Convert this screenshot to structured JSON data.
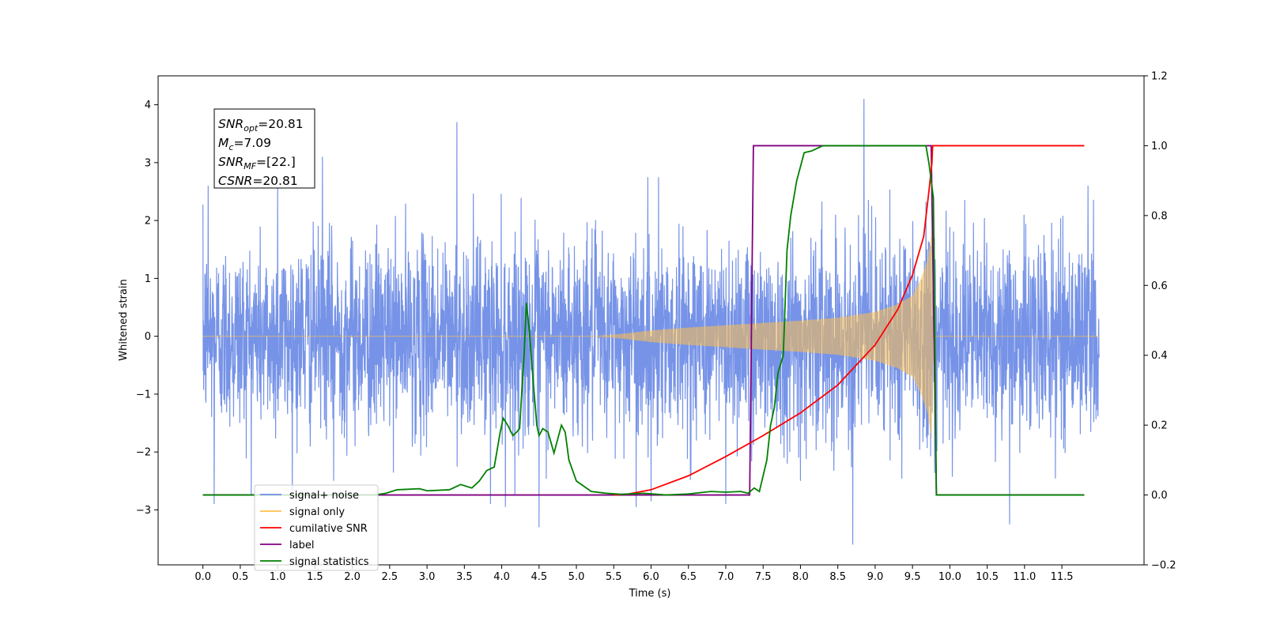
{
  "chart_data": {
    "type": "line",
    "xlabel": "Time (s)",
    "ylabel": "Whitened strain",
    "xlim": [
      -0.6,
      12.6
    ],
    "ylim": [
      -3.95,
      4.5
    ],
    "y2lim": [
      -0.2,
      1.2
    ],
    "x_ticks": [
      "0.0",
      "0.5",
      "1.0",
      "1.5",
      "2.0",
      "2.5",
      "3.0",
      "3.5",
      "4.0",
      "4.5",
      "5.0",
      "5.5",
      "6.0",
      "6.5",
      "7.0",
      "7.5",
      "8.0",
      "8.5",
      "9.0",
      "9.5",
      "10.0",
      "10.5",
      "11.0",
      "11.5"
    ],
    "y_ticks": [
      "−3",
      "−2",
      "−1",
      "0",
      "1",
      "2",
      "3",
      "4"
    ],
    "y2_ticks": [
      "−0.2",
      "0.0",
      "0.2",
      "0.4",
      "0.6",
      "0.8",
      "1.0",
      "1.2"
    ],
    "legend_position": "lower-left",
    "info_box": [
      {
        "base": "SNR",
        "sub": "opt",
        "value": "=20.81"
      },
      {
        "base": "M",
        "sub": "c",
        "value": "=7.09"
      },
      {
        "base": "SNR",
        "sub": "MF",
        "value": "=[22.]"
      },
      {
        "base": "CSNR",
        "sub": "",
        "value": "=20.81"
      }
    ],
    "series": [
      {
        "name": "signal+ noise",
        "axis": "left",
        "color": "#6f8de6",
        "noise_std": 0.82,
        "t_start": 0.0,
        "t_end": 12.0,
        "spikes": [
          [
            0.07,
            2.6
          ],
          [
            0.15,
            -2.9
          ],
          [
            1.0,
            2.7
          ],
          [
            1.6,
            3.1
          ],
          [
            1.75,
            -2.5
          ],
          [
            3.4,
            3.7
          ],
          [
            3.85,
            -2.9
          ],
          [
            4.05,
            -2.95
          ],
          [
            4.5,
            -3.3
          ],
          [
            5.8,
            -2.95
          ],
          [
            6.0,
            -2.85
          ],
          [
            6.1,
            2.75
          ],
          [
            7.0,
            -2.9
          ],
          [
            8.0,
            -2.5
          ],
          [
            8.7,
            -3.6
          ],
          [
            8.85,
            4.1
          ],
          [
            10.8,
            -3.25
          ],
          [
            11.85,
            2.6
          ]
        ]
      },
      {
        "name": "signal only",
        "axis": "left",
        "color": "#ffc04d",
        "envelope": [
          [
            0.0,
            0.0
          ],
          [
            5.3,
            0.0
          ],
          [
            5.6,
            0.04
          ],
          [
            6.0,
            0.1
          ],
          [
            6.5,
            0.15
          ],
          [
            7.0,
            0.19
          ],
          [
            7.5,
            0.23
          ],
          [
            8.0,
            0.27
          ],
          [
            8.5,
            0.32
          ],
          [
            9.0,
            0.42
          ],
          [
            9.3,
            0.55
          ],
          [
            9.5,
            0.7
          ],
          [
            9.6,
            0.95
          ],
          [
            9.7,
            1.3
          ],
          [
            9.76,
            1.8
          ],
          [
            9.78,
            0.0
          ],
          [
            12.0,
            0.0
          ]
        ]
      },
      {
        "name": "cumilative SNR",
        "axis": "right",
        "color": "#ff0000",
        "points": [
          [
            5.5,
            0.0
          ],
          [
            5.7,
            0.003
          ],
          [
            6.0,
            0.015
          ],
          [
            6.5,
            0.055
          ],
          [
            7.0,
            0.11
          ],
          [
            7.5,
            0.17
          ],
          [
            8.0,
            0.235
          ],
          [
            8.5,
            0.315
          ],
          [
            9.0,
            0.43
          ],
          [
            9.3,
            0.53
          ],
          [
            9.5,
            0.63
          ],
          [
            9.65,
            0.74
          ],
          [
            9.72,
            0.87
          ],
          [
            9.76,
            0.95
          ],
          [
            9.77,
            1.0
          ],
          [
            11.8,
            1.0
          ]
        ]
      },
      {
        "name": "label",
        "axis": "right",
        "color": "#800080",
        "points": [
          [
            0.0,
            0.0
          ],
          [
            7.32,
            0.0
          ],
          [
            7.37,
            1.0
          ],
          [
            9.75,
            1.0
          ],
          [
            9.82,
            0.0
          ],
          [
            11.8,
            0.0
          ]
        ]
      },
      {
        "name": "signal statistics",
        "axis": "right",
        "color": "#008000",
        "points": [
          [
            0.0,
            0.0
          ],
          [
            2.3,
            0.0
          ],
          [
            2.45,
            0.005
          ],
          [
            2.6,
            0.015
          ],
          [
            2.9,
            0.018
          ],
          [
            3.0,
            0.012
          ],
          [
            3.3,
            0.015
          ],
          [
            3.45,
            0.03
          ],
          [
            3.6,
            0.02
          ],
          [
            3.7,
            0.04
          ],
          [
            3.8,
            0.07
          ],
          [
            3.9,
            0.08
          ],
          [
            3.98,
            0.18
          ],
          [
            4.02,
            0.22
          ],
          [
            4.08,
            0.2
          ],
          [
            4.15,
            0.17
          ],
          [
            4.2,
            0.18
          ],
          [
            4.24,
            0.19
          ],
          [
            4.27,
            0.3
          ],
          [
            4.3,
            0.4
          ],
          [
            4.33,
            0.55
          ],
          [
            4.37,
            0.47
          ],
          [
            4.42,
            0.33
          ],
          [
            4.47,
            0.2
          ],
          [
            4.5,
            0.17
          ],
          [
            4.55,
            0.19
          ],
          [
            4.62,
            0.18
          ],
          [
            4.7,
            0.12
          ],
          [
            4.8,
            0.2
          ],
          [
            4.85,
            0.18
          ],
          [
            4.9,
            0.1
          ],
          [
            5.0,
            0.04
          ],
          [
            5.2,
            0.01
          ],
          [
            5.4,
            0.005
          ],
          [
            5.6,
            0.002
          ],
          [
            5.9,
            0.005
          ],
          [
            6.2,
            0.0
          ],
          [
            6.5,
            0.003
          ],
          [
            6.8,
            0.01
          ],
          [
            7.0,
            0.008
          ],
          [
            7.2,
            0.01
          ],
          [
            7.3,
            0.005
          ],
          [
            7.38,
            0.02
          ],
          [
            7.45,
            0.01
          ],
          [
            7.55,
            0.1
          ],
          [
            7.6,
            0.2
          ],
          [
            7.65,
            0.25
          ],
          [
            7.7,
            0.35
          ],
          [
            7.77,
            0.4
          ],
          [
            7.82,
            0.7
          ],
          [
            7.87,
            0.8
          ],
          [
            7.95,
            0.9
          ],
          [
            8.05,
            0.98
          ],
          [
            8.15,
            0.985
          ],
          [
            8.3,
            1.0
          ],
          [
            9.4,
            1.0
          ],
          [
            9.68,
            1.0
          ],
          [
            9.72,
            0.95
          ],
          [
            9.78,
            0.85
          ],
          [
            9.82,
            0.0
          ],
          [
            11.8,
            0.0
          ]
        ]
      }
    ]
  }
}
